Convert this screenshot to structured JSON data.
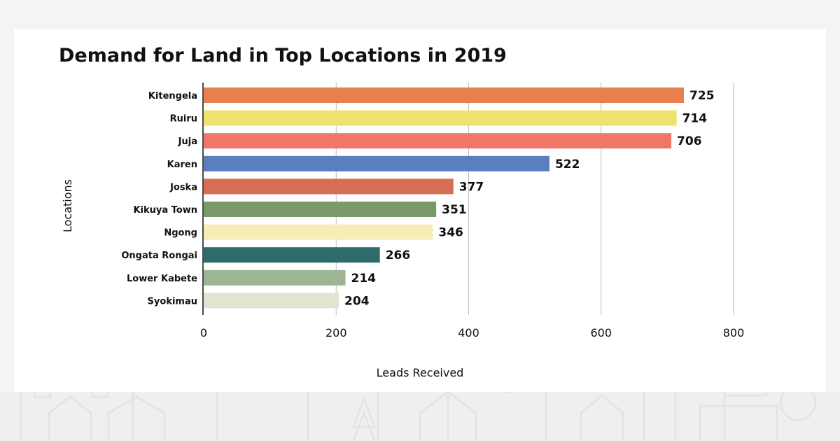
{
  "chart_data": {
    "type": "bar",
    "orientation": "horizontal",
    "title": "Demand for Land in Top Locations in 2019",
    "xlabel": "Leads Received",
    "ylabel": "Locations",
    "xlim": [
      0,
      800
    ],
    "xticks": [
      "0",
      "200",
      "400",
      "600",
      "800"
    ],
    "xtick_values": [
      0,
      200,
      400,
      600,
      800
    ],
    "grid": true,
    "categories": [
      "Kitengela",
      "Ruiru",
      "Juja",
      "Karen",
      "Joska",
      "Kikuya Town",
      "Ngong",
      "Ongata Rongai",
      "Lower Kabete",
      "Syokimau"
    ],
    "values": [
      725,
      714,
      706,
      522,
      377,
      351,
      346,
      266,
      214,
      204
    ],
    "value_labels": [
      "725",
      "714",
      "706",
      "522",
      "377",
      "351",
      "346",
      "266",
      "214",
      "204"
    ],
    "colors": [
      "#e8804e",
      "#f0e26e",
      "#ef776a",
      "#5b7ebf",
      "#d56e55",
      "#7a9968",
      "#f8edb8",
      "#2f6b6a",
      "#9db595",
      "#e0e5d2"
    ]
  }
}
